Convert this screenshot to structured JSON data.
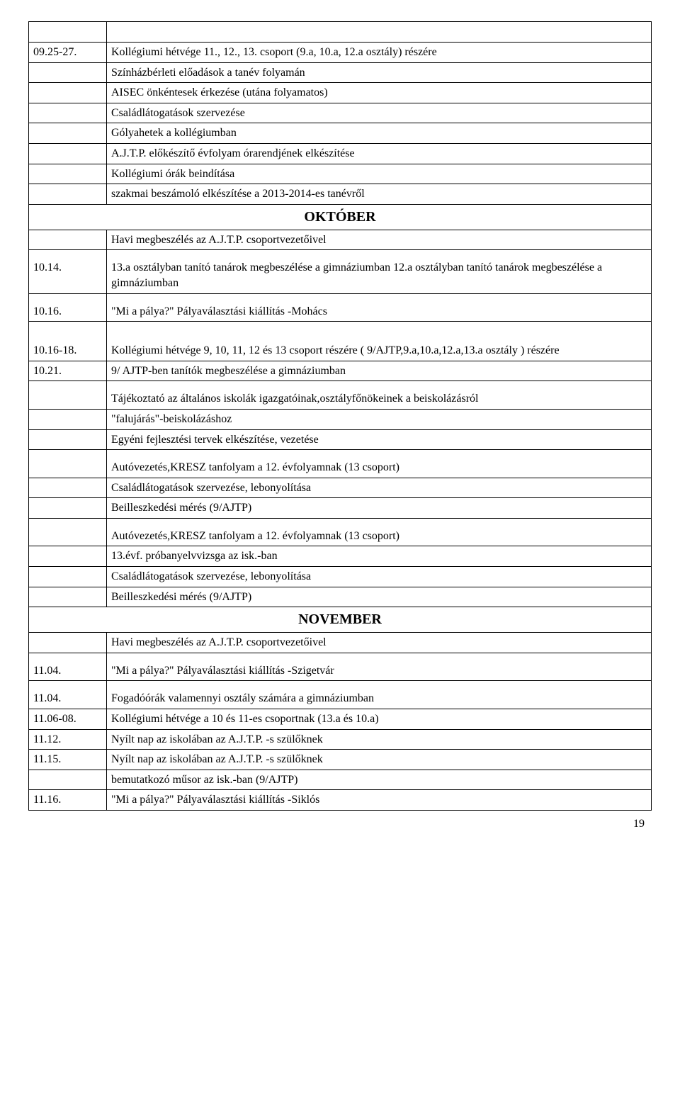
{
  "page_number": "19",
  "rows": [
    {
      "date": "",
      "text": "",
      "blank": true
    },
    {
      "date": "09.25-27.",
      "text": "Kollégiumi hétvége 11., 12., 13. csoport (9.a, 10.a, 12.a  osztály) részére"
    },
    {
      "date": "",
      "text": "Színházbérleti előadások a tanév folyamán"
    },
    {
      "date": "",
      "text": "AISEC önkéntesek érkezése (utána folyamatos)"
    },
    {
      "date": "",
      "text": "Családlátogatások szervezése"
    },
    {
      "date": "",
      "text": "Gólyahetek a kollégiumban"
    },
    {
      "date": "",
      "text": "A.J.T.P. előkészítő évfolyam órarendjének elkészítése"
    },
    {
      "date": "",
      "text": "Kollégiumi órák beindítása"
    },
    {
      "date": "",
      "text": "szakmai beszámoló elkészítése a 2013-2014-es tanévről"
    },
    {
      "header": "OKTÓBER"
    },
    {
      "date": "",
      "text": "Havi megbeszélés az A.J.T.P. csoportvezetőivel"
    },
    {
      "date": "10.14.",
      "text": "13.a osztályban tanító tanárok megbeszélése a gimnáziumban        12.a osztályban tanító tanárok megbeszélése a gimnáziumban",
      "spacing": "spaced1"
    },
    {
      "date": "10.16.",
      "text": "\"Mi a pálya?\" Pályaválasztási kiállítás -Mohács",
      "spacing": "spaced1"
    },
    {
      "date": "10.16-18.",
      "text": "Kollégiumi hétvége 9, 10, 11, 12 és 13 csoport részére  ( 9/AJTP,9.a,10.a,12.a,13.a osztály ) részére",
      "spacing": "spaced2"
    },
    {
      "date": "10.21.",
      "text": "9/ AJTP-ben tanítók megbeszélése a gimnáziumban"
    },
    {
      "date": "",
      "text": "Tájékoztató az általános iskolák igazgatóinak,osztályfőnökeinek a beiskolázásról",
      "spacing": "spaced1"
    },
    {
      "date": "",
      "text": "\"falujárás\"-beiskolázáshoz"
    },
    {
      "date": "",
      "text": "Egyéni fejlesztési tervek elkészítése, vezetése"
    },
    {
      "date": "",
      "text": "Autóvezetés,KRESZ tanfolyam a 12. évfolyamnak (13 csoport)",
      "spacing": "spaced1"
    },
    {
      "date": "",
      "text": "Családlátogatások szervezése, lebonyolítása"
    },
    {
      "date": "",
      "text": "Beilleszkedési mérés (9/AJTP)"
    },
    {
      "date": "",
      "text": "Autóvezetés,KRESZ tanfolyam a 12. évfolyamnak (13 csoport)",
      "spacing": "spaced1"
    },
    {
      "date": "",
      "text": "13.évf. próbanyelvvizsga az isk.-ban"
    },
    {
      "date": "",
      "text": "Családlátogatások szervezése, lebonyolítása"
    },
    {
      "date": "",
      "text": "Beilleszkedési mérés (9/AJTP)"
    },
    {
      "header": "NOVEMBER"
    },
    {
      "date": "",
      "text": "Havi megbeszélés az A.J.T.P. csoportvezetőivel"
    },
    {
      "date": "11.04.",
      "text": "\"Mi a pálya?\" Pályaválasztási kiállítás -Szigetvár",
      "spacing": "spaced1"
    },
    {
      "date": "11.04.",
      "text": "Fogadóórák valamennyi osztály számára a gimnáziumban",
      "spacing": "spaced1"
    },
    {
      "date": "11.06-08.",
      "text": "Kollégiumi hétvége a 10 és 11-es csoportnak (13.a és 10.a)"
    },
    {
      "date": "11.12.",
      "text": "Nyílt nap az iskolában az A.J.T.P. -s szülőknek"
    },
    {
      "date": "11.15.",
      "text": "Nyílt nap az iskolában az A.J.T.P. -s szülőknek"
    },
    {
      "date": "",
      "text": "bemutatkozó műsor az isk.-ban (9/AJTP)"
    },
    {
      "date": "11.16.",
      "text": "\"Mi a pálya?\" Pályaválasztási kiállítás -Siklós"
    }
  ]
}
